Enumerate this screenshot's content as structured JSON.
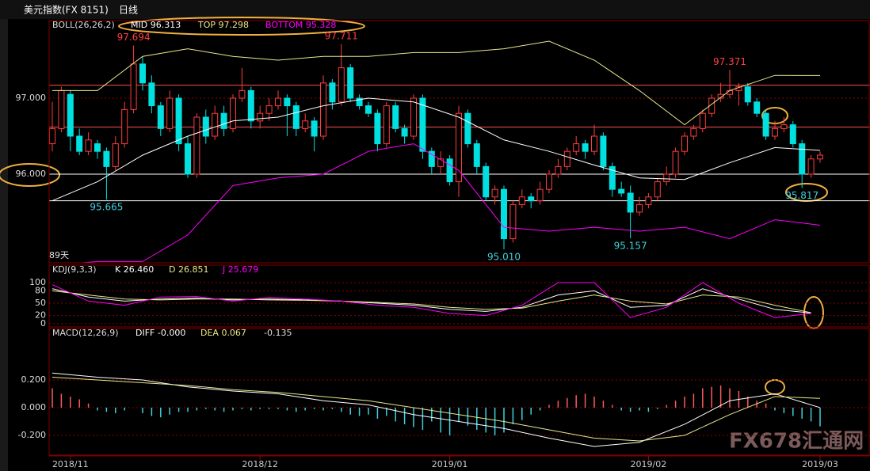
{
  "header": {
    "title": "美元指数(FX 8151)",
    "period": "日线"
  },
  "watermark": "FX678汇通网",
  "xaxis": {
    "ticks": [
      {
        "value": 2,
        "label": "2018/11"
      },
      {
        "value": 23,
        "label": "2018/12"
      },
      {
        "value": 44,
        "label": "2019/01"
      },
      {
        "value": 66,
        "label": "2019/02"
      },
      {
        "value": 85,
        "label": "2019/03"
      }
    ]
  },
  "chart_data": [
    {
      "type": "candlestick",
      "title": "BOLL(26,26,2)",
      "up_color": "#ff3c3c",
      "down_color": "#00e0e0",
      "ylim": [
        94.833,
        98.021
      ],
      "yticks": [
        {
          "value": 97,
          "label": "97.000"
        },
        {
          "value": 96,
          "label": "96.000"
        }
      ],
      "days_label": "89天",
      "ohlc": [
        [
          96.4,
          96.95,
          96.3,
          96.6
        ],
        [
          96.6,
          97.15,
          96.55,
          97.1
        ],
        [
          97.05,
          97.1,
          96.3,
          96.5
        ],
        [
          96.5,
          96.6,
          96.25,
          96.3
        ],
        [
          96.3,
          96.55,
          96.25,
          96.45
        ],
        [
          96.4,
          96.45,
          96.2,
          96.3
        ],
        [
          96.3,
          96.35,
          95.665,
          96.1
        ],
        [
          96.1,
          96.5,
          96.05,
          96.4
        ],
        [
          96.4,
          96.95,
          96.35,
          96.85
        ],
        [
          96.85,
          97.694,
          96.8,
          97.45
        ],
        [
          97.45,
          97.55,
          97.1,
          97.2
        ],
        [
          97.2,
          97.3,
          96.8,
          96.9
        ],
        [
          96.9,
          96.95,
          96.5,
          96.6
        ],
        [
          96.6,
          97.1,
          96.55,
          97.0
        ],
        [
          97.0,
          97.05,
          96.3,
          96.4
        ],
        [
          96.4,
          96.5,
          95.95,
          96.0
        ],
        [
          96.0,
          96.8,
          95.95,
          96.75
        ],
        [
          96.75,
          96.85,
          96.4,
          96.5
        ],
        [
          96.5,
          96.9,
          96.45,
          96.8
        ],
        [
          96.8,
          96.9,
          96.5,
          96.6
        ],
        [
          96.6,
          97.05,
          96.55,
          97.0
        ],
        [
          97.0,
          97.4,
          96.95,
          97.1
        ],
        [
          97.1,
          97.15,
          96.6,
          96.7
        ],
        [
          96.7,
          96.9,
          96.6,
          96.8
        ],
        [
          96.8,
          97.0,
          96.7,
          96.9
        ],
        [
          96.9,
          97.1,
          96.85,
          97.0
        ],
        [
          97.0,
          97.05,
          96.5,
          96.9
        ],
        [
          96.9,
          96.95,
          96.5,
          96.6
        ],
        [
          96.6,
          96.8,
          96.55,
          96.7
        ],
        [
          96.7,
          96.75,
          96.3,
          96.5
        ],
        [
          96.5,
          97.3,
          96.45,
          97.2
        ],
        [
          97.2,
          97.25,
          96.85,
          96.95
        ],
        [
          96.95,
          97.711,
          96.9,
          97.4
        ],
        [
          97.4,
          97.45,
          96.95,
          97.0
        ],
        [
          97.0,
          97.05,
          96.85,
          96.9
        ],
        [
          96.9,
          96.95,
          96.75,
          96.8
        ],
        [
          96.8,
          96.85,
          96.3,
          96.4
        ],
        [
          96.4,
          96.95,
          96.35,
          96.9
        ],
        [
          96.9,
          96.95,
          96.55,
          96.6
        ],
        [
          96.6,
          96.65,
          96.4,
          96.5
        ],
        [
          96.5,
          97.05,
          96.45,
          97.0
        ],
        [
          97.0,
          97.05,
          96.2,
          96.3
        ],
        [
          96.3,
          96.35,
          96.0,
          96.1
        ],
        [
          96.1,
          96.3,
          96.0,
          96.2
        ],
        [
          96.2,
          96.25,
          95.85,
          95.9
        ],
        [
          95.9,
          96.9,
          95.7,
          96.8
        ],
        [
          96.8,
          96.85,
          96.35,
          96.4
        ],
        [
          96.4,
          96.45,
          96.0,
          96.1
        ],
        [
          96.1,
          96.15,
          95.65,
          95.7
        ],
        [
          95.7,
          95.85,
          95.6,
          95.8
        ],
        [
          95.8,
          95.85,
          95.01,
          95.15
        ],
        [
          95.15,
          95.65,
          95.1,
          95.6
        ],
        [
          95.6,
          95.8,
          95.55,
          95.7
        ],
        [
          95.7,
          95.75,
          95.55,
          95.65
        ],
        [
          95.65,
          95.9,
          95.6,
          95.8
        ],
        [
          95.8,
          96.05,
          95.75,
          96.0
        ],
        [
          96.0,
          96.2,
          95.95,
          96.1
        ],
        [
          96.1,
          96.35,
          96.05,
          96.3
        ],
        [
          96.3,
          96.5,
          96.25,
          96.4
        ],
        [
          96.4,
          96.45,
          96.2,
          96.3
        ],
        [
          96.3,
          96.65,
          96.25,
          96.5
        ],
        [
          96.5,
          96.55,
          96.05,
          96.1
        ],
        [
          96.1,
          96.15,
          95.7,
          95.8
        ],
        [
          95.8,
          95.9,
          95.7,
          95.75
        ],
        [
          95.75,
          95.85,
          95.157,
          95.5
        ],
        [
          95.5,
          95.7,
          95.45,
          95.6
        ],
        [
          95.6,
          95.75,
          95.55,
          95.7
        ],
        [
          95.7,
          95.95,
          95.65,
          95.9
        ],
        [
          95.9,
          96.1,
          95.85,
          96.0
        ],
        [
          96.0,
          96.35,
          95.95,
          96.3
        ],
        [
          96.3,
          96.55,
          96.25,
          96.5
        ],
        [
          96.5,
          96.65,
          96.45,
          96.6
        ],
        [
          96.6,
          96.85,
          96.55,
          96.8
        ],
        [
          96.8,
          97.05,
          96.75,
          97.0
        ],
        [
          97.0,
          97.2,
          96.95,
          97.05
        ],
        [
          97.05,
          97.371,
          97.0,
          97.1
        ],
        [
          97.1,
          97.2,
          96.9,
          97.15
        ],
        [
          97.15,
          97.2,
          96.9,
          96.95
        ],
        [
          96.95,
          97.0,
          96.75,
          96.8
        ],
        [
          96.8,
          96.85,
          96.45,
          96.5
        ],
        [
          96.5,
          96.7,
          96.45,
          96.6
        ],
        [
          96.6,
          96.75,
          96.55,
          96.65
        ],
        [
          96.65,
          96.7,
          96.35,
          96.4
        ],
        [
          96.4,
          96.45,
          95.817,
          96.0
        ],
        [
          96.0,
          96.25,
          95.95,
          96.2
        ],
        [
          96.2,
          96.3,
          96.15,
          96.25
        ]
      ],
      "lines": [
        {
          "name": "MID 96.313",
          "color": "#ffffff",
          "x": [
            0,
            5,
            10,
            15,
            20,
            25,
            30,
            35,
            40,
            45,
            50,
            55,
            60,
            65,
            70,
            75,
            80,
            85
          ],
          "values": [
            95.65,
            95.9,
            96.25,
            96.5,
            96.7,
            96.75,
            96.9,
            97.0,
            96.95,
            96.75,
            96.45,
            96.3,
            96.12,
            95.95,
            95.93,
            96.15,
            96.35,
            96.313
          ]
        },
        {
          "name": "TOP 97.298",
          "color": "#e8e88c",
          "x": [
            0,
            5,
            10,
            15,
            20,
            25,
            30,
            35,
            40,
            45,
            50,
            55,
            60,
            65,
            70,
            75,
            80,
            85
          ],
          "values": [
            97.1,
            97.1,
            97.55,
            97.65,
            97.55,
            97.5,
            97.55,
            97.55,
            97.6,
            97.6,
            97.65,
            97.75,
            97.5,
            97.1,
            96.65,
            97.1,
            97.3,
            97.298
          ]
        },
        {
          "name": "BOTTOM 95.328",
          "color": "#ff00ff",
          "x": [
            0,
            5,
            10,
            15,
            20,
            25,
            30,
            35,
            40,
            45,
            50,
            55,
            60,
            65,
            70,
            75,
            80,
            85
          ],
          "values": [
            94.8,
            94.85,
            94.85,
            95.2,
            95.85,
            95.95,
            96.0,
            96.3,
            96.4,
            96.05,
            95.3,
            95.25,
            95.3,
            95.25,
            95.3,
            95.15,
            95.4,
            95.328
          ]
        }
      ],
      "hlines": [
        {
          "value": 97.17,
          "color": "#ff5050"
        },
        {
          "value": 96.62,
          "color": "#ff5050"
        },
        {
          "value": 96.0,
          "color": "#ffffff"
        },
        {
          "value": 95.65,
          "color": "#ffffff"
        }
      ],
      "annotations": [
        {
          "index": 9,
          "value": 97.694,
          "label": "97.694",
          "color": "#ff4040"
        },
        {
          "index": 6,
          "value": 95.665,
          "label": "95.665",
          "color": "#40d0e0"
        },
        {
          "index": 32,
          "value": 97.711,
          "label": "97.711",
          "color": "#ff4040"
        },
        {
          "index": 50,
          "value": 95.01,
          "label": "95.010",
          "color": "#40d0e0"
        },
        {
          "index": 64,
          "value": 95.157,
          "label": "95.157",
          "color": "#40d0e0"
        },
        {
          "index": 75,
          "value": 97.371,
          "label": "97.371",
          "color": "#ff4040"
        },
        {
          "index": 83,
          "value": 95.817,
          "label": "95.817",
          "color": "#40d0e0"
        }
      ]
    },
    {
      "type": "line",
      "title": "KDJ(9,3,3)",
      "ylim": [
        -7.7,
        142.3
      ],
      "yticks": [
        100,
        80,
        50,
        20,
        0
      ],
      "series": [
        {
          "name": "K 26.460",
          "color": "#ffffff",
          "x": [
            0,
            4,
            8,
            12,
            16,
            20,
            24,
            28,
            32,
            36,
            40,
            44,
            48,
            52,
            56,
            60,
            64,
            68,
            72,
            76,
            80,
            84
          ],
          "values": [
            85,
            65,
            55,
            60,
            62,
            58,
            60,
            58,
            55,
            50,
            45,
            35,
            30,
            40,
            70,
            80,
            40,
            45,
            85,
            60,
            35,
            26
          ]
        },
        {
          "name": "D 26.851",
          "color": "#e8e88c",
          "x": [
            0,
            4,
            8,
            12,
            16,
            20,
            24,
            28,
            32,
            36,
            40,
            44,
            48,
            52,
            56,
            60,
            64,
            68,
            72,
            76,
            80,
            84
          ],
          "values": [
            80,
            70,
            60,
            58,
            60,
            60,
            58,
            57,
            55,
            52,
            48,
            40,
            35,
            38,
            55,
            70,
            55,
            48,
            70,
            65,
            45,
            27
          ]
        },
        {
          "name": "J 25.679",
          "color": "#ff00ff",
          "x": [
            0,
            4,
            8,
            12,
            16,
            20,
            24,
            28,
            32,
            36,
            40,
            44,
            48,
            52,
            56,
            60,
            64,
            68,
            72,
            76,
            80,
            84
          ],
          "values": [
            95,
            55,
            45,
            65,
            66,
            55,
            64,
            60,
            55,
            45,
            40,
            25,
            20,
            45,
            100,
            100,
            15,
            40,
            100,
            50,
            15,
            25
          ]
        }
      ]
    },
    {
      "type": "macd",
      "title": "MACD(12,26,9)",
      "macd_label": "-0.135",
      "ylim": [
        -0.343,
        0.571
      ],
      "yticks": [
        {
          "value": 0.2,
          "label": "0.200"
        },
        {
          "value": 0,
          "label": "0.000"
        },
        {
          "value": -0.2,
          "label": "-0.200"
        }
      ],
      "up_color": "#ff5a5a",
      "down_color": "#40d0e0",
      "histogram": [
        0.14,
        0.1,
        0.08,
        0.06,
        0.03,
        -0.02,
        -0.03,
        -0.04,
        -0.02,
        0,
        -0.04,
        -0.06,
        -0.07,
        -0.05,
        -0.03,
        -0.03,
        -0.02,
        -0.01,
        -0.02,
        -0.03,
        -0.02,
        -0.01,
        -0.02,
        -0.01,
        -0.01,
        -0.01,
        -0.02,
        -0.03,
        -0.02,
        -0.01,
        -0.02,
        -0.01,
        -0.03,
        -0.05,
        -0.06,
        -0.05,
        -0.08,
        -0.06,
        -0.1,
        -0.12,
        -0.14,
        -0.16,
        -0.1,
        -0.18,
        -0.2,
        -0.1,
        -0.13,
        -0.16,
        -0.18,
        -0.2,
        -0.18,
        -0.12,
        -0.09,
        -0.05,
        -0.02,
        0.02,
        0.05,
        0.07,
        0.09,
        0.1,
        0.08,
        0.05,
        0.02,
        -0.02,
        -0.03,
        -0.02,
        -0.03,
        -0.01,
        0.02,
        0.05,
        0.08,
        0.1,
        0.14,
        0.15,
        0.16,
        0.14,
        0.12,
        0.08,
        0.05,
        0.03,
        -0.02,
        -0.04,
        -0.06,
        -0.08,
        -0.1,
        -0.135
      ],
      "series": [
        {
          "name": "DIFF -0.000",
          "color": "#ffffff",
          "x": [
            0,
            5,
            10,
            15,
            20,
            25,
            30,
            35,
            40,
            45,
            50,
            55,
            60,
            65,
            70,
            75,
            80,
            85
          ],
          "values": [
            0.25,
            0.22,
            0.2,
            0.15,
            0.12,
            0.1,
            0.05,
            0.02,
            -0.05,
            -0.1,
            -0.15,
            -0.22,
            -0.28,
            -0.25,
            -0.12,
            0.05,
            0.1,
            0.0
          ]
        },
        {
          "name": "DEA 0.067",
          "color": "#e8e88c",
          "x": [
            0,
            5,
            10,
            15,
            20,
            25,
            30,
            35,
            40,
            45,
            50,
            55,
            60,
            65,
            70,
            75,
            80,
            85
          ],
          "values": [
            0.22,
            0.2,
            0.18,
            0.16,
            0.13,
            0.11,
            0.08,
            0.05,
            0.0,
            -0.05,
            -0.1,
            -0.16,
            -0.22,
            -0.24,
            -0.2,
            -0.05,
            0.08,
            0.067
          ]
        }
      ]
    }
  ]
}
